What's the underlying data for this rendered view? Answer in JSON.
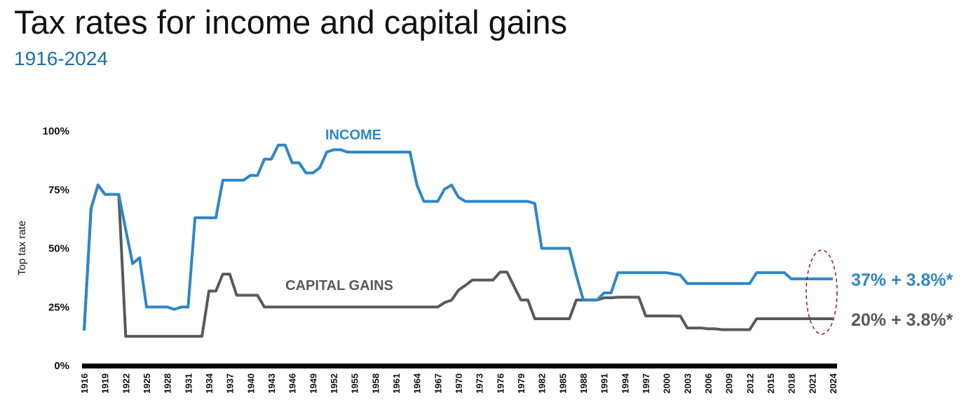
{
  "title": "Tax rates for income and capital gains",
  "subtitle": "1916-2024",
  "chart_data": {
    "type": "line",
    "title": "Tax rates for income and capital gains",
    "subtitle": "1916-2024",
    "xlabel": "",
    "ylabel": "Top tax rate",
    "xlim": [
      1916,
      2024
    ],
    "ylim": [
      0,
      100
    ],
    "y_ticks": [
      0,
      25,
      50,
      75,
      100
    ],
    "y_tick_labels": [
      "0%",
      "25%",
      "50%",
      "75%",
      "100%"
    ],
    "x_tick_labels": [
      "1916",
      "1919",
      "1922",
      "1925",
      "1928",
      "1931",
      "1934",
      "1937",
      "1940",
      "1943",
      "1946",
      "1949",
      "1952",
      "1955",
      "1958",
      "1961",
      "1964",
      "1967",
      "1970",
      "1973",
      "1976",
      "1979",
      "1982",
      "1985",
      "1988",
      "1991",
      "1994",
      "1997",
      "2000",
      "2003",
      "2006",
      "2009",
      "2012",
      "2015",
      "2018",
      "2021",
      "2024"
    ],
    "grid": false,
    "legend": "inline labels",
    "series": [
      {
        "name": "INCOME",
        "color": "#2e86c8",
        "end_label": "37% + 3.8%*",
        "points": [
          [
            1916,
            15
          ],
          [
            1917,
            67
          ],
          [
            1918,
            77
          ],
          [
            1919,
            73
          ],
          [
            1920,
            73
          ],
          [
            1921,
            73
          ],
          [
            1922,
            58
          ],
          [
            1923,
            43.5
          ],
          [
            1924,
            46
          ],
          [
            1925,
            25
          ],
          [
            1926,
            25
          ],
          [
            1927,
            25
          ],
          [
            1928,
            25
          ],
          [
            1929,
            24
          ],
          [
            1930,
            25
          ],
          [
            1931,
            25
          ],
          [
            1932,
            63
          ],
          [
            1933,
            63
          ],
          [
            1934,
            63
          ],
          [
            1935,
            63
          ],
          [
            1936,
            79
          ],
          [
            1937,
            79
          ],
          [
            1938,
            79
          ],
          [
            1939,
            79
          ],
          [
            1940,
            81.1
          ],
          [
            1941,
            81
          ],
          [
            1942,
            88
          ],
          [
            1943,
            88
          ],
          [
            1944,
            94
          ],
          [
            1945,
            94
          ],
          [
            1946,
            86.45
          ],
          [
            1947,
            86.45
          ],
          [
            1948,
            82.13
          ],
          [
            1949,
            82.13
          ],
          [
            1950,
            84.36
          ],
          [
            1951,
            91
          ],
          [
            1952,
            92
          ],
          [
            1953,
            92
          ],
          [
            1954,
            91
          ],
          [
            1955,
            91
          ],
          [
            1956,
            91
          ],
          [
            1957,
            91
          ],
          [
            1958,
            91
          ],
          [
            1959,
            91
          ],
          [
            1960,
            91
          ],
          [
            1961,
            91
          ],
          [
            1962,
            91
          ],
          [
            1963,
            91
          ],
          [
            1964,
            77
          ],
          [
            1965,
            70
          ],
          [
            1966,
            70
          ],
          [
            1967,
            70
          ],
          [
            1968,
            75.25
          ],
          [
            1969,
            77
          ],
          [
            1970,
            71.75
          ],
          [
            1971,
            70
          ],
          [
            1972,
            70
          ],
          [
            1973,
            70
          ],
          [
            1974,
            70
          ],
          [
            1975,
            70
          ],
          [
            1976,
            70
          ],
          [
            1977,
            70
          ],
          [
            1978,
            70
          ],
          [
            1979,
            70
          ],
          [
            1980,
            70
          ],
          [
            1981,
            69.13
          ],
          [
            1982,
            50
          ],
          [
            1983,
            50
          ],
          [
            1984,
            50
          ],
          [
            1985,
            50
          ],
          [
            1986,
            50
          ],
          [
            1987,
            38.5
          ],
          [
            1988,
            28
          ],
          [
            1989,
            28
          ],
          [
            1990,
            28
          ],
          [
            1991,
            31
          ],
          [
            1992,
            31
          ],
          [
            1993,
            39.6
          ],
          [
            1994,
            39.6
          ],
          [
            1995,
            39.6
          ],
          [
            1996,
            39.6
          ],
          [
            1997,
            39.6
          ],
          [
            1998,
            39.6
          ],
          [
            1999,
            39.6
          ],
          [
            2000,
            39.6
          ],
          [
            2001,
            39.1
          ],
          [
            2002,
            38.6
          ],
          [
            2003,
            35
          ],
          [
            2004,
            35
          ],
          [
            2005,
            35
          ],
          [
            2006,
            35
          ],
          [
            2007,
            35
          ],
          [
            2008,
            35
          ],
          [
            2009,
            35
          ],
          [
            2010,
            35
          ],
          [
            2011,
            35
          ],
          [
            2012,
            35
          ],
          [
            2013,
            39.6
          ],
          [
            2014,
            39.6
          ],
          [
            2015,
            39.6
          ],
          [
            2016,
            39.6
          ],
          [
            2017,
            39.6
          ],
          [
            2018,
            37
          ],
          [
            2019,
            37
          ],
          [
            2020,
            37
          ],
          [
            2021,
            37
          ],
          [
            2022,
            37
          ],
          [
            2023,
            37
          ],
          [
            2024,
            37
          ]
        ]
      },
      {
        "name": "CAPITAL GAINS",
        "color": "#595959",
        "end_label": "20% + 3.8%*",
        "points": [
          [
            1916,
            15
          ],
          [
            1917,
            67
          ],
          [
            1918,
            77
          ],
          [
            1919,
            73
          ],
          [
            1920,
            73
          ],
          [
            1921,
            73
          ],
          [
            1922,
            12.5
          ],
          [
            1923,
            12.5
          ],
          [
            1924,
            12.5
          ],
          [
            1925,
            12.5
          ],
          [
            1926,
            12.5
          ],
          [
            1927,
            12.5
          ],
          [
            1928,
            12.5
          ],
          [
            1929,
            12.5
          ],
          [
            1930,
            12.5
          ],
          [
            1931,
            12.5
          ],
          [
            1932,
            12.5
          ],
          [
            1933,
            12.5
          ],
          [
            1934,
            31.8
          ],
          [
            1935,
            31.8
          ],
          [
            1936,
            39
          ],
          [
            1937,
            39
          ],
          [
            1938,
            30
          ],
          [
            1939,
            30
          ],
          [
            1940,
            30
          ],
          [
            1941,
            30
          ],
          [
            1942,
            25
          ],
          [
            1943,
            25
          ],
          [
            1944,
            25
          ],
          [
            1945,
            25
          ],
          [
            1946,
            25
          ],
          [
            1947,
            25
          ],
          [
            1948,
            25
          ],
          [
            1949,
            25
          ],
          [
            1950,
            25
          ],
          [
            1951,
            25
          ],
          [
            1952,
            25
          ],
          [
            1953,
            25
          ],
          [
            1954,
            25
          ],
          [
            1955,
            25
          ],
          [
            1956,
            25
          ],
          [
            1957,
            25
          ],
          [
            1958,
            25
          ],
          [
            1959,
            25
          ],
          [
            1960,
            25
          ],
          [
            1961,
            25
          ],
          [
            1962,
            25
          ],
          [
            1963,
            25
          ],
          [
            1964,
            25
          ],
          [
            1965,
            25
          ],
          [
            1966,
            25
          ],
          [
            1967,
            25
          ],
          [
            1968,
            26.9
          ],
          [
            1969,
            27.9
          ],
          [
            1970,
            32.21
          ],
          [
            1971,
            34.25
          ],
          [
            1972,
            36.5
          ],
          [
            1973,
            36.5
          ],
          [
            1974,
            36.5
          ],
          [
            1975,
            36.5
          ],
          [
            1976,
            39.875
          ],
          [
            1977,
            39.875
          ],
          [
            1978,
            33.85
          ],
          [
            1979,
            28
          ],
          [
            1980,
            28
          ],
          [
            1981,
            20
          ],
          [
            1982,
            20
          ],
          [
            1983,
            20
          ],
          [
            1984,
            20
          ],
          [
            1985,
            20
          ],
          [
            1986,
            20
          ],
          [
            1987,
            28
          ],
          [
            1988,
            28
          ],
          [
            1989,
            28
          ],
          [
            1990,
            28
          ],
          [
            1991,
            28.93
          ],
          [
            1992,
            28.93
          ],
          [
            1993,
            29.19
          ],
          [
            1994,
            29.19
          ],
          [
            1995,
            29.19
          ],
          [
            1996,
            29.19
          ],
          [
            1997,
            21.19
          ],
          [
            1998,
            21.19
          ],
          [
            1999,
            21.19
          ],
          [
            2000,
            21.19
          ],
          [
            2001,
            21.17
          ],
          [
            2002,
            21.16
          ],
          [
            2003,
            16.05
          ],
          [
            2004,
            16.05
          ],
          [
            2005,
            16.05
          ],
          [
            2006,
            15.7
          ],
          [
            2007,
            15.7
          ],
          [
            2008,
            15.35
          ],
          [
            2009,
            15.35
          ],
          [
            2010,
            15.35
          ],
          [
            2011,
            15.35
          ],
          [
            2012,
            15.35
          ],
          [
            2013,
            20
          ],
          [
            2014,
            20
          ],
          [
            2015,
            20
          ],
          [
            2016,
            20
          ],
          [
            2017,
            20
          ],
          [
            2018,
            20
          ],
          [
            2019,
            20
          ],
          [
            2020,
            20
          ],
          [
            2021,
            20
          ],
          [
            2022,
            20
          ],
          [
            2023,
            20
          ],
          [
            2024,
            20
          ]
        ]
      }
    ]
  }
}
